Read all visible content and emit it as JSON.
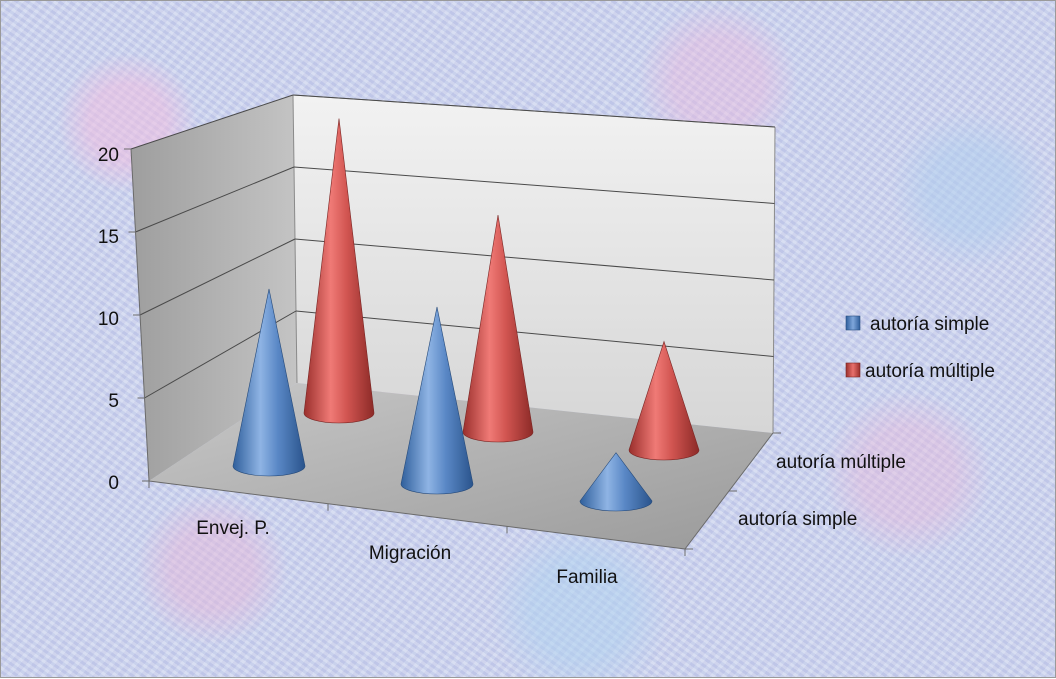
{
  "chart_data": {
    "type": "bar",
    "style": "3d-cone",
    "categories": [
      "Envej. P.",
      "Migración",
      "Familia"
    ],
    "series": [
      {
        "name": "autoría simple",
        "values": [
          11,
          11,
          3
        ],
        "color": "#4f81bd"
      },
      {
        "name": "autoría múltiple",
        "values": [
          19,
          14,
          7
        ],
        "color": "#c0504d"
      }
    ],
    "y_ticks": [
      "0",
      "5",
      "10",
      "15",
      "20"
    ],
    "ylim": [
      0,
      20
    ],
    "depth_labels": [
      "autoría múltiple",
      "autoría simple"
    ],
    "grid": true,
    "legend": {
      "placement": "right"
    },
    "title": "",
    "xlabel": "",
    "ylabel": ""
  }
}
